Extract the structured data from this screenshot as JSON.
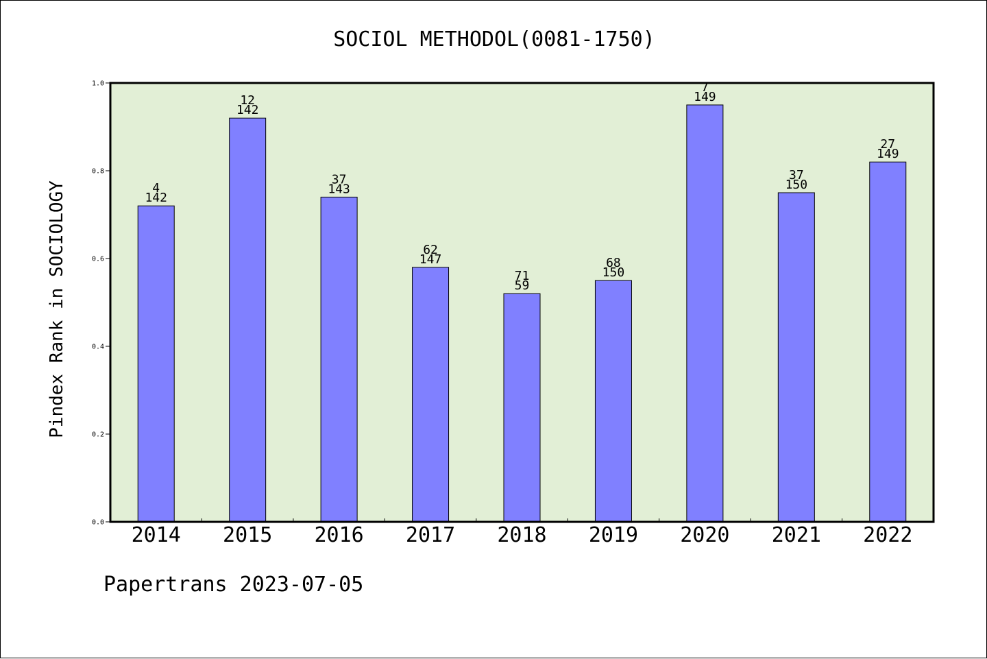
{
  "chart_data": {
    "type": "bar",
    "title": "SOCIOL METHODOL(0081-1750)",
    "ylabel": "Pindex Rank in SOCIOLOGY",
    "xlabel": "",
    "categories": [
      "2014",
      "2015",
      "2016",
      "2017",
      "2018",
      "2019",
      "2020",
      "2021",
      "2022"
    ],
    "values": [
      0.72,
      0.92,
      0.74,
      0.58,
      0.52,
      0.55,
      0.95,
      0.75,
      0.82
    ],
    "rank_labels": [
      "4",
      "12",
      "37",
      "62",
      "71",
      "68",
      "7",
      "37",
      "27"
    ],
    "total_labels": [
      "142",
      "142",
      "143",
      "147",
      "59",
      "150",
      "149",
      "150",
      "149"
    ],
    "ylim": [
      0,
      1.0
    ],
    "yticks": [
      "0.0",
      "0.2",
      "0.4",
      "0.6",
      "0.8",
      "1.0"
    ],
    "grid": false,
    "legend": "none",
    "colors": {
      "bar_fill": "#8080ff",
      "plot_background": "#e2efd6",
      "axis": "#000000"
    }
  },
  "footer": "Papertrans 2023-07-05"
}
